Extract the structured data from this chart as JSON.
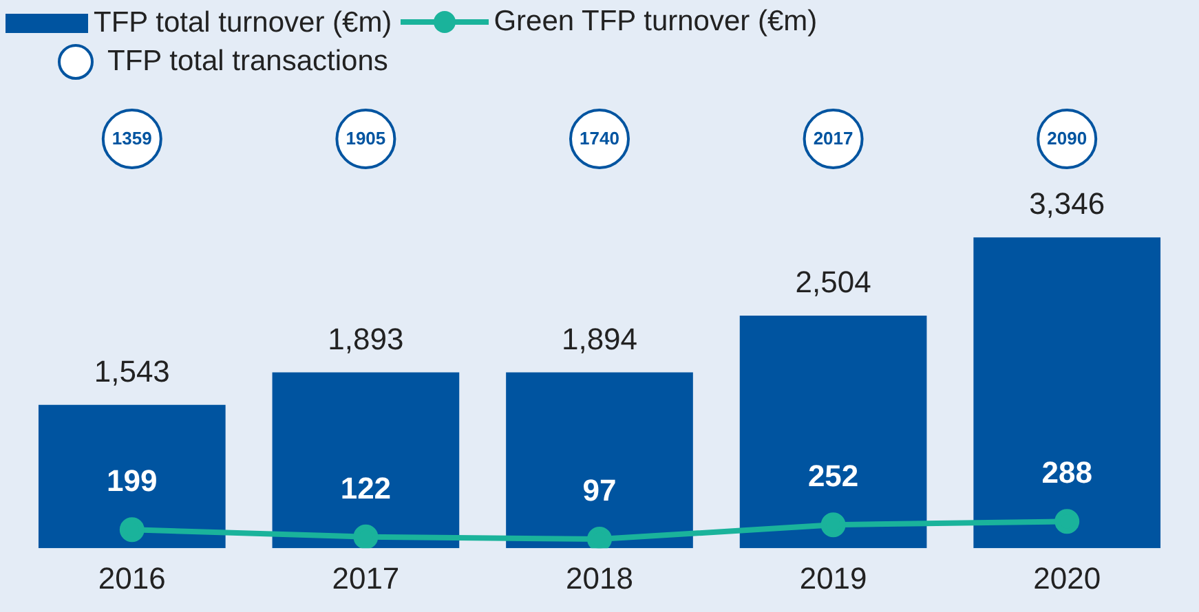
{
  "chart_data": {
    "type": "bar",
    "categories": [
      "2016",
      "2017",
      "2018",
      "2019",
      "2020"
    ],
    "series": [
      {
        "name": "TFP total turnover (€m)",
        "type": "bar",
        "color": "#0054a0",
        "values": [
          1543,
          1893,
          1894,
          2504,
          3346
        ],
        "value_labels": [
          "1,543",
          "1,893",
          "1,894",
          "2,504",
          "3,346"
        ]
      },
      {
        "name": "Green TFP turnover (€m)",
        "type": "line",
        "color": "#1ab39b",
        "values": [
          199,
          122,
          97,
          252,
          288
        ],
        "value_labels": [
          "199",
          "122",
          "97",
          "252",
          "288"
        ]
      },
      {
        "name": "TFP total transactions",
        "type": "other",
        "color": "#0054a0",
        "values": [
          null,
          null,
          null,
          null,
          null
        ]
      }
    ],
    "annotations": [
      {
        "text": "1359",
        "x": "2016"
      },
      {
        "text": "1905",
        "x": "2017"
      },
      {
        "text": "1740",
        "x": "2018"
      },
      {
        "text": "2017",
        "x": "2019"
      },
      {
        "text": "2090",
        "x": "2020"
      }
    ],
    "ylim": [
      0,
      5740
    ],
    "legend": "top left",
    "tick_labels": "x",
    "grid": false,
    "marker": "circle"
  }
}
